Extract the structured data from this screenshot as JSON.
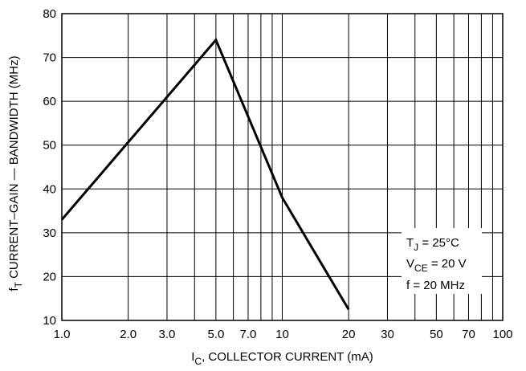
{
  "chart_data": {
    "type": "line",
    "x_scale": "log",
    "y_scale": "linear",
    "xlim": [
      1.0,
      100
    ],
    "ylim": [
      10,
      80
    ],
    "grid": true,
    "x_ticks": [
      1.0,
      2.0,
      3.0,
      5.0,
      7.0,
      10,
      20,
      30,
      50,
      70,
      100
    ],
    "x_tick_labels": [
      "1.0",
      "2.0",
      "3.0",
      "5.0",
      "7.0",
      "10",
      "20",
      "30",
      "50",
      "70",
      "100"
    ],
    "x_minor_grid": [
      4,
      6,
      8,
      9,
      40,
      60,
      80,
      90
    ],
    "y_ticks": [
      10,
      20,
      30,
      40,
      50,
      60,
      70,
      80
    ],
    "y_tick_labels": [
      "10",
      "20",
      "30",
      "40",
      "50",
      "60",
      "70",
      "80"
    ],
    "xlabel": {
      "main": "I",
      "sub": "C",
      "rest": ", COLLECTOR CURRENT (mA)"
    },
    "ylabel": {
      "main": "f",
      "sub": "T",
      "rest": " CURRENT–GAIN — BANDWIDTH (MHz)"
    },
    "series": [
      {
        "x": [
          1.0,
          5.0,
          10,
          20
        ],
        "y": [
          33,
          74,
          38,
          12.5
        ]
      }
    ],
    "annotations": [
      {
        "main": "T",
        "sub": "J",
        "rest": " = 25°C"
      },
      {
        "main": "V",
        "sub": "CE",
        "rest": " = 20 V"
      },
      {
        "main": "f = 20 MHz",
        "sub": "",
        "rest": ""
      }
    ]
  }
}
